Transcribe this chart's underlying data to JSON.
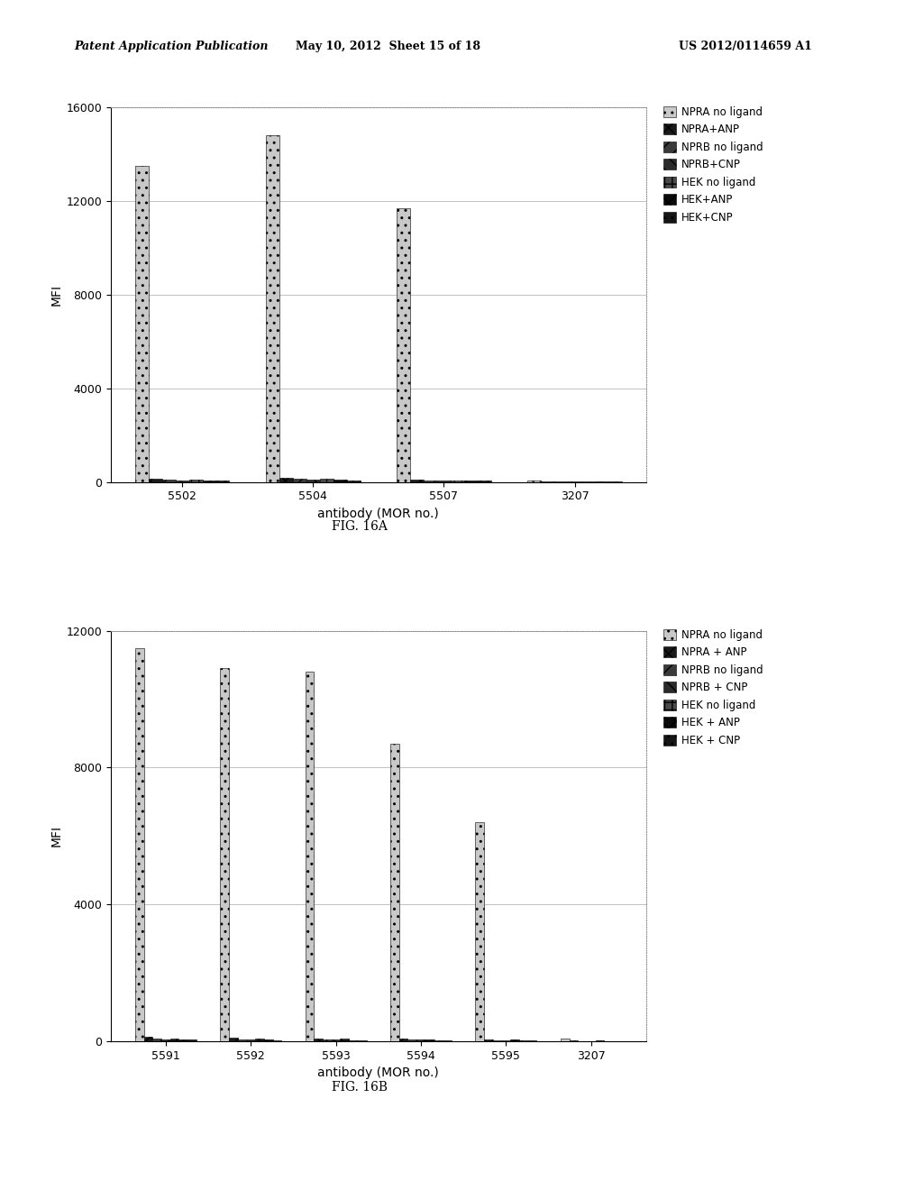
{
  "fig_a": {
    "categories": [
      "5502",
      "5504",
      "5507",
      "3207"
    ],
    "series": [
      {
        "label": "NPRA no ligand",
        "values": [
          13500,
          14800,
          11700,
          50
        ]
      },
      {
        "label": "NPRA+ANP",
        "values": [
          120,
          170,
          95,
          25
        ]
      },
      {
        "label": "NPRB no ligand",
        "values": [
          90,
          120,
          75,
          18
        ]
      },
      {
        "label": "NPRB+CNP",
        "values": [
          75,
          100,
          65,
          12
        ]
      },
      {
        "label": "HEK no ligand",
        "values": [
          100,
          140,
          80,
          20
        ]
      },
      {
        "label": "HEK+ANP",
        "values": [
          70,
          90,
          55,
          8
        ]
      },
      {
        "label": "HEK+CNP",
        "values": [
          60,
          80,
          45,
          6
        ]
      }
    ],
    "ylim": [
      0,
      16000
    ],
    "yticks": [
      0,
      4000,
      8000,
      12000,
      16000
    ],
    "ylabel": "MFI",
    "xlabel": "antibody (MOR no.)",
    "fig_label": "FIG. 16A"
  },
  "fig_b": {
    "categories": [
      "5591",
      "5592",
      "5593",
      "5594",
      "5595",
      "3207"
    ],
    "series": [
      {
        "label": "NPRA no ligand",
        "values": [
          11500,
          10900,
          10800,
          8700,
          6400,
          80
        ]
      },
      {
        "label": "NPRA + ANP",
        "values": [
          130,
          110,
          90,
          80,
          60,
          25
        ]
      },
      {
        "label": "NPRB no ligand",
        "values": [
          70,
          60,
          55,
          45,
          35,
          12
        ]
      },
      {
        "label": "NPRB + CNP",
        "values": [
          60,
          52,
          45,
          40,
          30,
          8
        ]
      },
      {
        "label": "HEK no ligand",
        "values": [
          90,
          80,
          70,
          60,
          50,
          15
        ]
      },
      {
        "label": "HEK + ANP",
        "values": [
          50,
          45,
          35,
          30,
          25,
          6
        ]
      },
      {
        "label": "HEK + CNP",
        "values": [
          40,
          35,
          30,
          25,
          20,
          4
        ]
      }
    ],
    "ylim": [
      0,
      12000
    ],
    "yticks": [
      0,
      4000,
      8000,
      12000
    ],
    "ylabel": "MFI",
    "xlabel": "antibody (MOR no.)",
    "fig_label": "FIG. 16B"
  },
  "header_left": "Patent Application Publication",
  "header_mid": "May 10, 2012  Sheet 15 of 18",
  "header_right": "US 2012/0114659 A1",
  "background_color": "#ffffff"
}
